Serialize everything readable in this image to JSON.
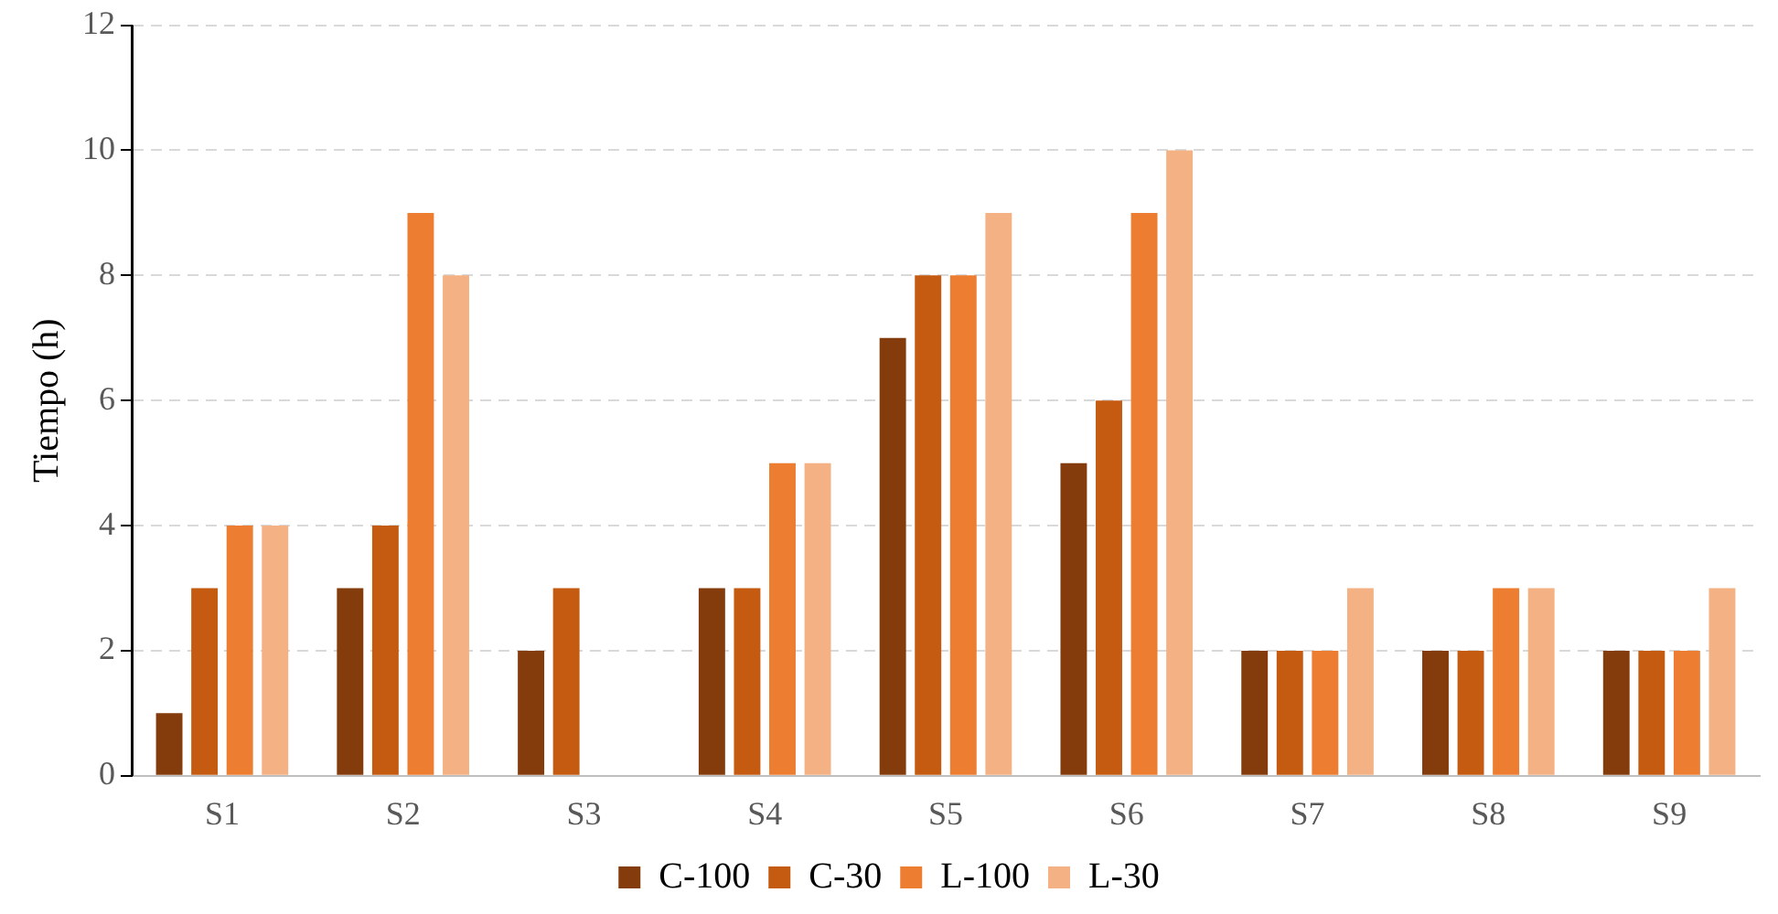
{
  "chart_data": {
    "type": "bar",
    "ylabel": "Tiempo (h)",
    "categories": [
      "S1",
      "S2",
      "S3",
      "S4",
      "S5",
      "S6",
      "S7",
      "S8",
      "S9"
    ],
    "series": [
      {
        "name": "C-100",
        "color": "#843c0c",
        "values": [
          1,
          3,
          2,
          3,
          7,
          5,
          2,
          2,
          2
        ]
      },
      {
        "name": "C-30",
        "color": "#c55a11",
        "values": [
          3,
          4,
          3,
          3,
          8,
          6,
          2,
          2,
          2
        ]
      },
      {
        "name": "L-100",
        "color": "#ed7d31",
        "values": [
          4,
          9,
          null,
          5,
          8,
          9,
          2,
          3,
          2
        ]
      },
      {
        "name": "L-30",
        "color": "#f4b183",
        "values": [
          4,
          8,
          null,
          5,
          9,
          10,
          3,
          3,
          3
        ]
      }
    ],
    "ylim": [
      0,
      12
    ],
    "yticks": [
      0,
      2,
      4,
      6,
      8,
      10,
      12
    ],
    "grid": "y",
    "legend": "bottom"
  }
}
